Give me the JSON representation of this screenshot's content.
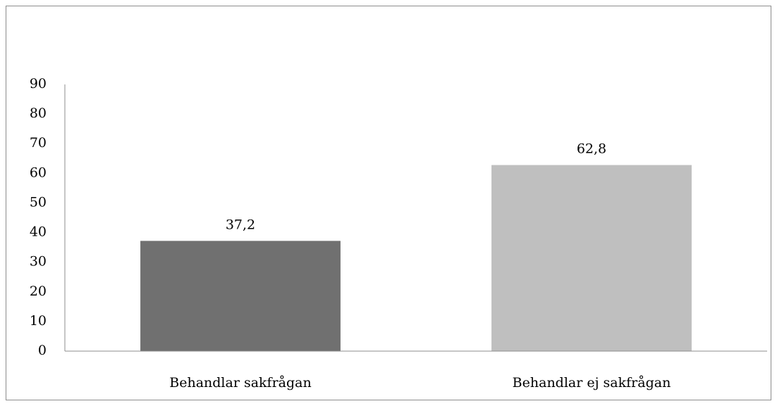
{
  "chart_data": {
    "type": "bar",
    "categories": [
      "Behandlar sakfrågan",
      "Behandlar ej sakfrågan"
    ],
    "values": [
      37.2,
      62.8
    ],
    "value_labels": [
      "37,2",
      "62,8"
    ],
    "colors": [
      "#707070",
      "#bfbfbf"
    ],
    "ylim": [
      0,
      90
    ],
    "yticks": [
      0,
      10,
      20,
      30,
      40,
      50,
      60,
      70,
      80,
      90
    ],
    "grid": false
  }
}
